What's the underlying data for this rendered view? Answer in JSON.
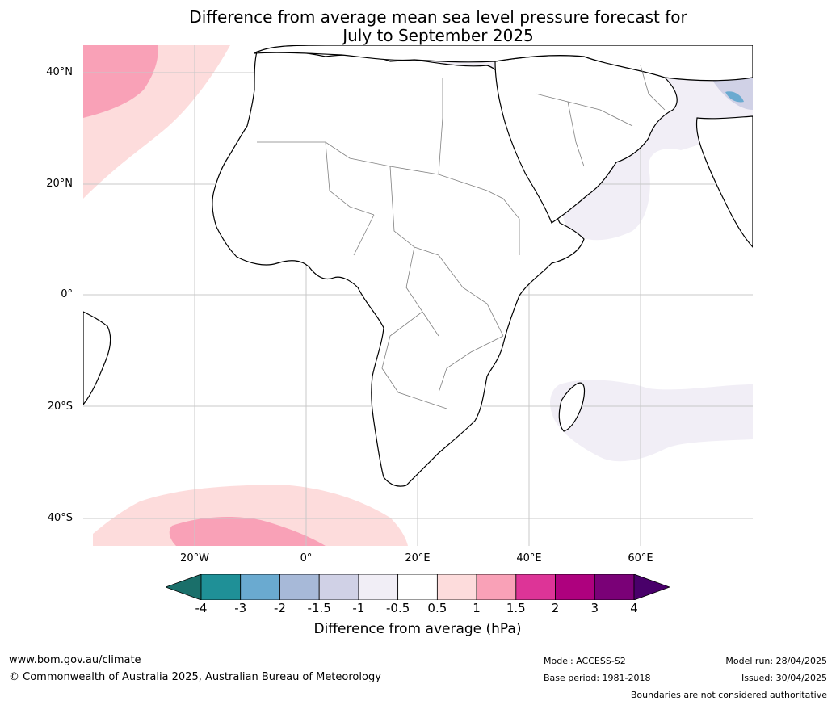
{
  "title": {
    "line1": "Difference from average mean sea level pressure forecast for",
    "line2": "July to September 2025"
  },
  "map": {
    "lat_labels": [
      "40°N",
      "20°N",
      "0°",
      "20°S",
      "40°S"
    ],
    "lon_labels": [
      "20°W",
      "0°",
      "20°E",
      "40°E",
      "60°E"
    ]
  },
  "colorbar": {
    "ticks": [
      "-4",
      "-3",
      "-2",
      "-1.5",
      "-1",
      "-0.5",
      "0.5",
      "1",
      "1.5",
      "2",
      "3",
      "4"
    ],
    "colors": [
      "#1a6f6a",
      "#1f9097",
      "#6aaad0",
      "#a7b9d8",
      "#d0d1e6",
      "#f1eef6",
      "#ffffff",
      "#fddcdc",
      "#f9a1b7",
      "#dd3497",
      "#ae017e",
      "#7a0177",
      "#49006a"
    ],
    "label": "Difference from average (hPa)"
  },
  "footer": {
    "website": "www.bom.gov.au/climate",
    "copyright": "© Commonwealth of Australia 2025, Australian Bureau of Meteorology",
    "model": "Model: ACCESS-S2",
    "base_period": "Base period: 1981-2018",
    "model_run": "Model run: 28/04/2025",
    "issued": "Issued: 30/04/2025",
    "boundaries": "Boundaries are not considered authoritative"
  }
}
